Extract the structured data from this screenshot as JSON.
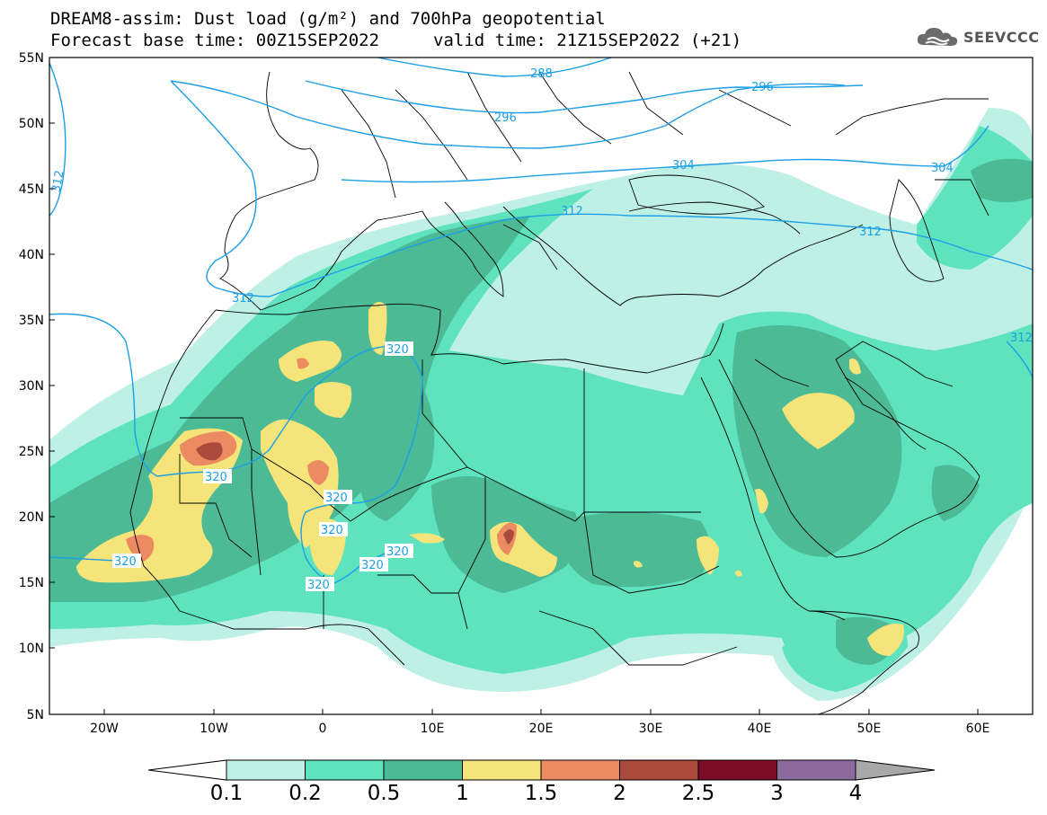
{
  "title": {
    "line1": "DREAM8-assim: Dust load (g/m²) and 700hPa geopotential",
    "line2_left": "Forecast base time: 00Z15SEP2022",
    "line2_right": "valid time: 21Z15SEP2022 (+21)"
  },
  "logo": {
    "text": "SEEVCCC",
    "icon": "cloud-icon"
  },
  "map": {
    "lat_labels": [
      "55N",
      "50N",
      "45N",
      "40N",
      "35N",
      "30N",
      "25N",
      "20N",
      "15N",
      "10N",
      "5N"
    ],
    "lon_labels": [
      "20W",
      "10W",
      "0",
      "10E",
      "20E",
      "30E",
      "40E",
      "50E",
      "60E"
    ]
  },
  "contour_labels": [
    "288",
    "296",
    "296",
    "304",
    "304",
    "312",
    "312",
    "312",
    "312",
    "312",
    "320",
    "320",
    "320",
    "320",
    "320",
    "320",
    "320",
    "320"
  ],
  "colorbar": {
    "ticks": [
      "0.1",
      "0.2",
      "0.5",
      "1",
      "1.5",
      "2",
      "2.5",
      "3",
      "4"
    ],
    "colors": [
      "#bff0e6",
      "#5fe3bf",
      "#4cba94",
      "#f4e479",
      "#ec8a62",
      "#a94a3c",
      "#7b0d28",
      "#8c6b9c"
    ],
    "under_color": "#ffffff",
    "over_color": "#a8a8a8"
  },
  "colors": {
    "contour": "#1c9fe6",
    "frame": "#000000",
    "coast": "#000000"
  }
}
